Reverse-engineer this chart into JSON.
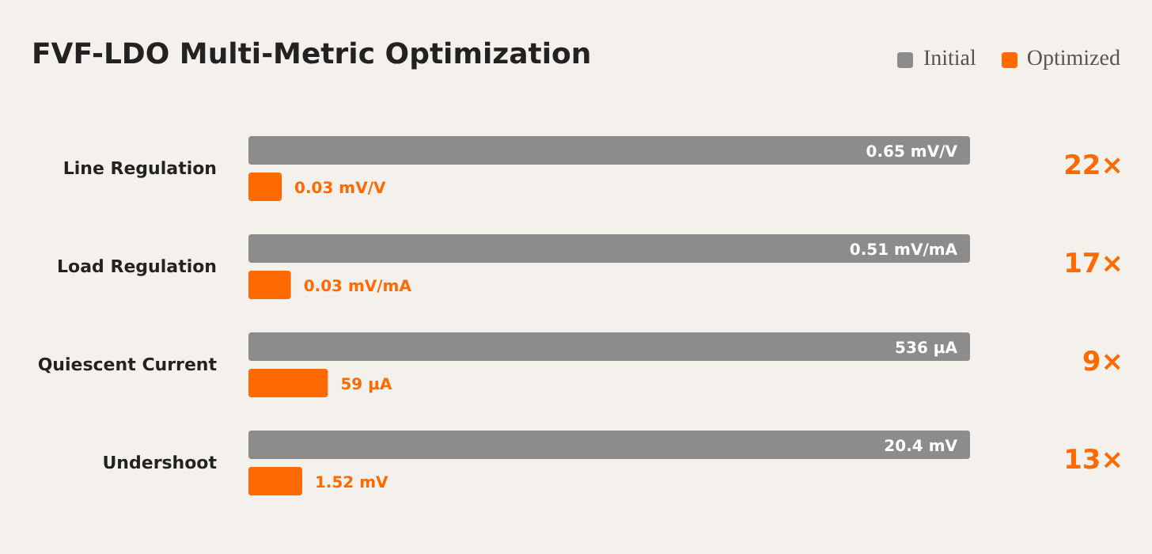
{
  "chart_data": [
    {
      "type": "bar",
      "orientation": "horizontal",
      "title": "FVF-LDO Multi-Metric Optimization",
      "legend": "top right",
      "tick_labels": "y",
      "categories": [
        "Line Regulation"
      ],
      "xlim": [
        0,
        0.65
      ],
      "series": [
        {
          "name": "Initial",
          "color": "#8c8c8c",
          "values": [
            0.65
          ],
          "value_labels": [
            "0.65 mV/V"
          ]
        },
        {
          "name": "Optimized",
          "color": "#ff6a00",
          "values": [
            0.03
          ],
          "value_labels": [
            "0.03 mV/V"
          ]
        }
      ],
      "annotations": [
        "22×"
      ]
    },
    {
      "type": "bar",
      "orientation": "horizontal",
      "tick_labels": "y",
      "categories": [
        "Load Regulation"
      ],
      "xlim": [
        0,
        0.51
      ],
      "series": [
        {
          "color": "#8c8c8c",
          "values": [
            0.51
          ],
          "value_labels": [
            "0.51 mV/mA"
          ]
        },
        {
          "color": "#ff6a00",
          "values": [
            0.03
          ],
          "value_labels": [
            "0.03 mV/mA"
          ]
        }
      ],
      "annotations": [
        "17×"
      ]
    },
    {
      "type": "bar",
      "orientation": "horizontal",
      "tick_labels": "y",
      "categories": [
        "Quiescent Current"
      ],
      "xlim": [
        0,
        536
      ],
      "series": [
        {
          "color": "#8c8c8c",
          "values": [
            536
          ],
          "value_labels": [
            "536 µA"
          ]
        },
        {
          "color": "#ff6a00",
          "values": [
            59
          ],
          "value_labels": [
            "59 µA"
          ]
        }
      ],
      "annotations": [
        "9×"
      ]
    },
    {
      "type": "bar",
      "orientation": "horizontal",
      "tick_labels": "y",
      "categories": [
        "Undershoot"
      ],
      "xlim": [
        0,
        20.4
      ],
      "series": [
        {
          "color": "#8c8c8c",
          "values": [
            20.4
          ],
          "value_labels": [
            "20.4 mV"
          ]
        },
        {
          "color": "#ff6a00",
          "values": [
            1.52
          ],
          "value_labels": [
            "1.52 mV"
          ]
        }
      ],
      "annotations": [
        "13×"
      ]
    }
  ]
}
